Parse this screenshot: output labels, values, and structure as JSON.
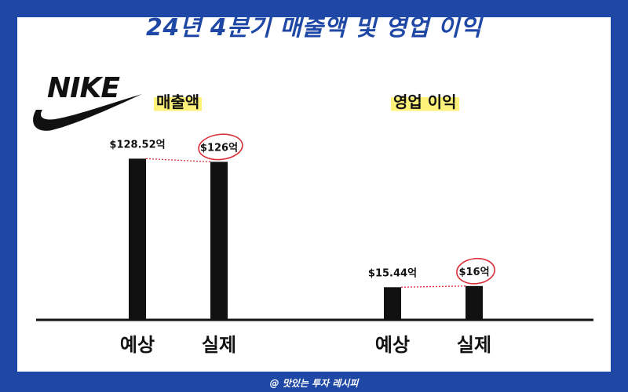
{
  "title": "24년 4분기 매출액 및 영업 이익",
  "logo_text": "NIKE",
  "footer": "@ 맛있는 투자 레시피",
  "colors": {
    "frame": "#1f48a6",
    "bar": "#111111",
    "highlight": "#fff27a",
    "circle": "#d9313a"
  },
  "chart_data": [
    {
      "type": "bar",
      "title": "매출액",
      "categories": [
        "예상",
        "실제"
      ],
      "values": [
        128.52,
        126
      ],
      "labels": [
        "$128.52억",
        "$126억"
      ],
      "circled_index": 1
    },
    {
      "type": "bar",
      "title": "영업 이익",
      "categories": [
        "예상",
        "실제"
      ],
      "values": [
        15.44,
        16
      ],
      "labels": [
        "$15.44억",
        "$16억"
      ],
      "circled_index": 1
    }
  ]
}
